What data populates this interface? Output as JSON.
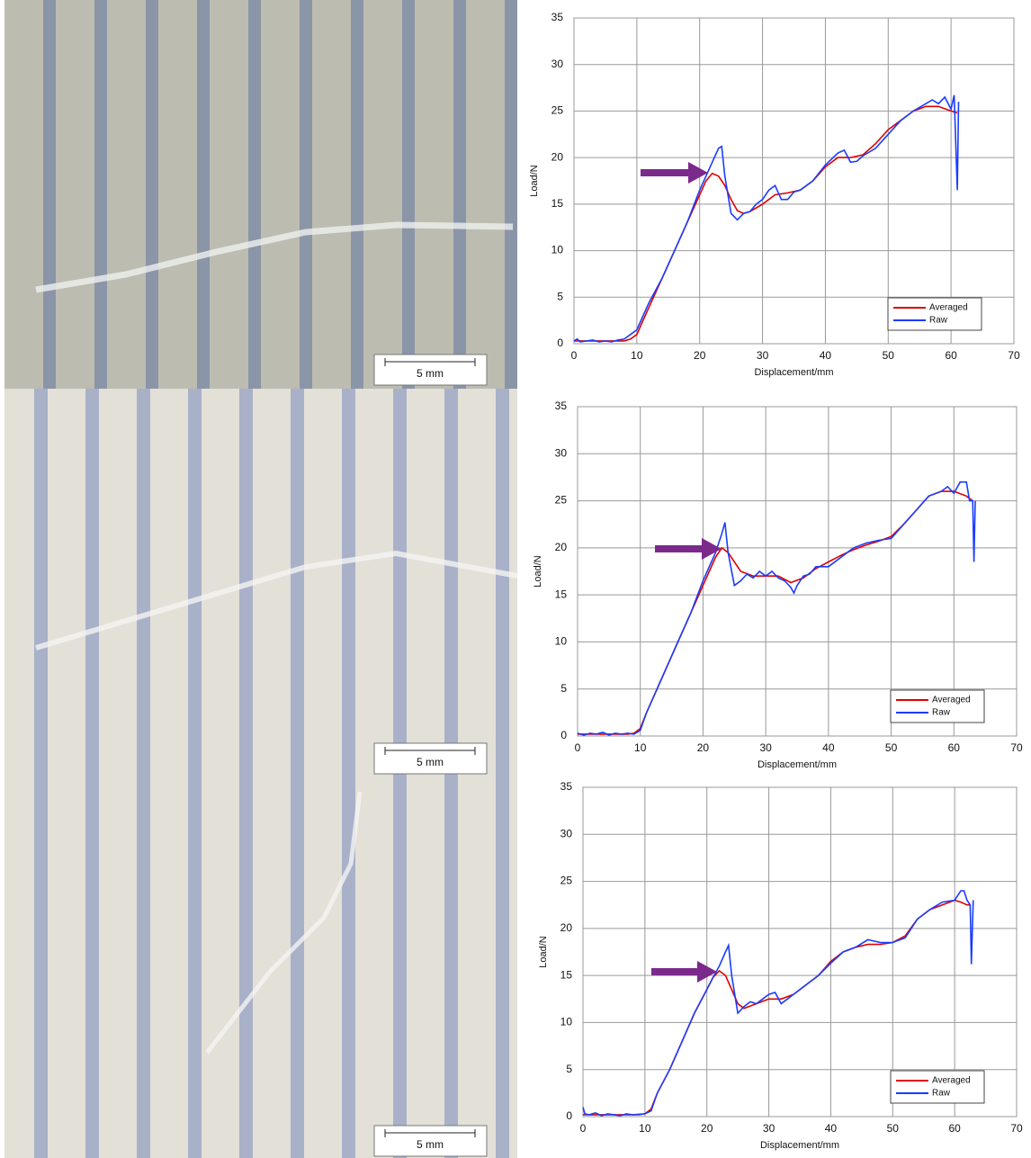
{
  "photos": [
    {
      "scale_bar": "5 mm"
    },
    {
      "scale_bar": "5 mm"
    },
    {
      "scale_bar": "5 mm"
    }
  ],
  "chart_data": [
    {
      "type": "line",
      "x_label": "Displacement/mm",
      "y_label": "Load/N",
      "xlim": [
        0,
        70
      ],
      "ylim": [
        0,
        35
      ],
      "xticks": [
        0,
        10,
        20,
        30,
        40,
        50,
        60,
        70
      ],
      "yticks": [
        0,
        5,
        10,
        15,
        20,
        25,
        30,
        35
      ],
      "grid": true,
      "legend": "lower right",
      "series": [
        {
          "name": "Averaged",
          "color": "#e00000",
          "x": [
            0,
            2,
            4,
            6,
            8,
            9,
            10,
            11,
            12,
            14,
            16,
            18,
            20,
            21,
            22,
            23,
            24,
            25,
            26,
            27,
            28,
            30,
            32,
            34,
            36,
            38,
            40,
            42,
            44,
            46,
            48,
            50,
            52,
            54,
            56,
            58,
            60,
            61
          ],
          "values": [
            0.3,
            0.3,
            0.3,
            0.3,
            0.3,
            0.5,
            1,
            2.5,
            4,
            7,
            10,
            13,
            16,
            17.5,
            18.3,
            18,
            17,
            15.5,
            14.3,
            14,
            14.2,
            15,
            16,
            16.2,
            16.5,
            17.5,
            19,
            20,
            20,
            20.3,
            21.5,
            23,
            24,
            25,
            25.5,
            25.5,
            25,
            24.8
          ]
        },
        {
          "name": "Raw",
          "color": "#1a3cff",
          "x": [
            0,
            0.5,
            1,
            2,
            3,
            4,
            5,
            6,
            7,
            8,
            9,
            10,
            11,
            12,
            14,
            16,
            18,
            20,
            21,
            22,
            23,
            23.5,
            24,
            25,
            26,
            27,
            28,
            29,
            30,
            31,
            32,
            33,
            34,
            35,
            36,
            38,
            40,
            42,
            43,
            44,
            45,
            46,
            48,
            50,
            52,
            54,
            56,
            57,
            58,
            59,
            60,
            60.5,
            61,
            61.2
          ],
          "values": [
            0.3,
            0.5,
            0.2,
            0.3,
            0.4,
            0.2,
            0.3,
            0.2,
            0.4,
            0.5,
            1,
            1.5,
            3,
            4.5,
            7,
            10,
            13,
            16.5,
            18,
            19.5,
            21,
            21.2,
            18,
            14,
            13.3,
            14,
            14.2,
            15,
            15.5,
            16.5,
            17,
            15.5,
            15.5,
            16.3,
            16.5,
            17.5,
            19.2,
            20.5,
            20.8,
            19.5,
            19.6,
            20.2,
            21,
            22.5,
            24,
            25,
            25.8,
            26.2,
            25.8,
            26.5,
            25.2,
            26.7,
            16.5,
            26
          ]
        }
      ]
    },
    {
      "type": "line",
      "x_label": "Displacement/mm",
      "y_label": "Load/N",
      "xlim": [
        0,
        70
      ],
      "ylim": [
        0,
        35
      ],
      "xticks": [
        0,
        10,
        20,
        30,
        40,
        50,
        60,
        70
      ],
      "yticks": [
        0,
        5,
        10,
        15,
        20,
        25,
        30,
        35
      ],
      "grid": true,
      "legend": "lower right",
      "series": [
        {
          "name": "Averaged",
          "color": "#e00000",
          "x": [
            0,
            4,
            8,
            9,
            10,
            11,
            12,
            14,
            16,
            18,
            20,
            22,
            23,
            24,
            25,
            26,
            28,
            30,
            32,
            34,
            36,
            38,
            40,
            42,
            44,
            46,
            48,
            50,
            52,
            54,
            56,
            58,
            60,
            62,
            63
          ],
          "values": [
            0.2,
            0.2,
            0.2,
            0.3,
            0.8,
            2.5,
            4,
            7,
            10,
            13,
            16,
            19,
            20,
            19.5,
            18.5,
            17.5,
            17,
            17,
            17,
            16.3,
            16.8,
            17.8,
            18.5,
            19.2,
            19.8,
            20.3,
            20.7,
            21.2,
            22.5,
            24,
            25.5,
            26,
            26,
            25.5,
            25
          ]
        },
        {
          "name": "Raw",
          "color": "#1a3cff",
          "x": [
            0,
            1,
            2,
            3,
            4,
            5,
            6,
            7,
            8,
            9,
            10,
            11,
            12,
            14,
            16,
            18,
            20,
            22,
            23,
            23.5,
            24,
            25,
            26,
            27,
            28,
            29,
            30,
            31,
            32,
            33,
            34,
            34.5,
            35,
            36,
            37,
            38,
            40,
            42,
            44,
            46,
            48,
            50,
            52,
            54,
            56,
            58,
            59,
            60,
            61,
            62,
            62.5,
            63,
            63.2,
            63.4
          ],
          "values": [
            0.3,
            0.1,
            0.3,
            0.2,
            0.4,
            0.1,
            0.3,
            0.2,
            0.3,
            0.2,
            0.6,
            2.5,
            4,
            7,
            10,
            13,
            16.5,
            19.5,
            21.5,
            22.7,
            19.5,
            16,
            16.5,
            17.2,
            16.8,
            17.5,
            17,
            17.5,
            16.8,
            16.5,
            15.8,
            15.2,
            16,
            17,
            17.2,
            18,
            18,
            19,
            20,
            20.5,
            20.8,
            21,
            22.5,
            24,
            25.5,
            26,
            26.5,
            25.8,
            27,
            27,
            25,
            25,
            18.5,
            25
          ]
        }
      ]
    },
    {
      "type": "line",
      "x_label": "Displacement/mm",
      "y_label": "Load/N",
      "xlim": [
        0,
        70
      ],
      "ylim": [
        0,
        35
      ],
      "xticks": [
        0,
        10,
        20,
        30,
        40,
        50,
        60,
        70
      ],
      "yticks": [
        0,
        5,
        10,
        15,
        20,
        25,
        30,
        35
      ],
      "grid": true,
      "legend": "lower right",
      "series": [
        {
          "name": "Averaged",
          "color": "#e00000",
          "x": [
            0,
            4,
            8,
            10,
            11,
            12,
            14,
            16,
            18,
            20,
            21,
            22,
            23,
            24,
            25,
            26,
            28,
            30,
            32,
            34,
            36,
            38,
            40,
            42,
            44,
            46,
            48,
            50,
            52,
            54,
            56,
            58,
            60,
            61,
            62,
            62.5
          ],
          "values": [
            0.2,
            0.2,
            0.2,
            0.3,
            0.8,
            2.5,
            5,
            8,
            11,
            13.5,
            14.8,
            15.5,
            15,
            13.5,
            12,
            11.5,
            12,
            12.5,
            12.5,
            13,
            14,
            15,
            16.5,
            17.5,
            18,
            18.3,
            18.3,
            18.5,
            19.2,
            21,
            22,
            22.5,
            23,
            22.8,
            22.5,
            22.5
          ]
        },
        {
          "name": "Raw",
          "color": "#1a3cff",
          "x": [
            0,
            0.3,
            1,
            2,
            3,
            4,
            5,
            6,
            7,
            8,
            9,
            10,
            11,
            12,
            14,
            16,
            18,
            20,
            21,
            22,
            23,
            23.5,
            24,
            25,
            26,
            27,
            28,
            29,
            30,
            31,
            32,
            33,
            34,
            36,
            38,
            40,
            42,
            44,
            46,
            48,
            50,
            52,
            54,
            56,
            58,
            60,
            61,
            61.5,
            62,
            62.5,
            62.7,
            63
          ],
          "values": [
            1,
            0.3,
            0.2,
            0.4,
            0.1,
            0.3,
            0.2,
            0.1,
            0.3,
            0.2,
            0.2,
            0.3,
            0.6,
            2.5,
            5,
            8,
            11,
            13.5,
            14.8,
            16,
            17.5,
            18.2,
            15,
            11,
            11.7,
            12.2,
            12,
            12.5,
            13,
            13.2,
            12,
            12.5,
            13,
            14,
            15,
            16.3,
            17.5,
            18,
            18.8,
            18.5,
            18.5,
            19,
            21,
            22,
            22.8,
            23,
            24,
            24,
            23,
            22.5,
            16.2,
            23
          ]
        }
      ]
    }
  ]
}
